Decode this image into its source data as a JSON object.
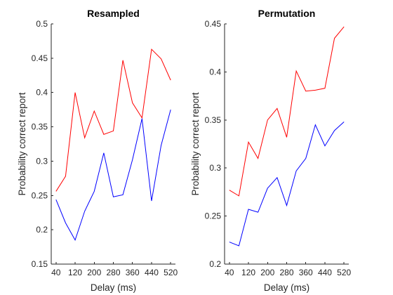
{
  "chart_data": [
    {
      "type": "line",
      "title": "Resampled",
      "xlabel": "Delay (ms)",
      "ylabel": "Probability correct report",
      "xlim": [
        20,
        540
      ],
      "ylim": [
        0.15,
        0.5
      ],
      "xticks": [
        40,
        120,
        200,
        280,
        360,
        440,
        520
      ],
      "xtick_labels": [
        "40",
        "120",
        "200",
        "280",
        "360",
        "440",
        "520"
      ],
      "yticks": [
        0.15,
        0.2,
        0.25,
        0.3,
        0.35,
        0.4,
        0.45,
        0.5
      ],
      "ytick_labels": [
        "0.15",
        "0.2",
        "0.25",
        "0.3",
        "0.35",
        "0.4",
        "0.45",
        "0.5"
      ],
      "grid": false,
      "x": [
        40,
        80,
        120,
        160,
        200,
        240,
        280,
        320,
        360,
        400,
        440,
        480,
        520
      ],
      "series": [
        {
          "color": "#ff0000",
          "values": [
            0.256,
            0.278,
            0.4,
            0.334,
            0.373,
            0.339,
            0.344,
            0.447,
            0.385,
            0.363,
            0.463,
            0.449,
            0.418
          ]
        },
        {
          "color": "#0000ff",
          "values": [
            0.244,
            0.21,
            0.185,
            0.227,
            0.256,
            0.312,
            0.248,
            0.251,
            0.302,
            0.362,
            0.242,
            0.323,
            0.375
          ]
        }
      ]
    },
    {
      "type": "line",
      "title": "Permutation",
      "xlabel": "Delay (ms)",
      "ylabel": "Probability correct report",
      "xlim": [
        20,
        540
      ],
      "ylim": [
        0.2,
        0.45
      ],
      "xticks": [
        40,
        120,
        200,
        280,
        360,
        440,
        520
      ],
      "xtick_labels": [
        "40",
        "120",
        "200",
        "280",
        "360",
        "440",
        "520"
      ],
      "yticks": [
        0.2,
        0.25,
        0.3,
        0.35,
        0.4,
        0.45
      ],
      "ytick_labels": [
        "0.2",
        "0.25",
        "0.3",
        "0.35",
        "0.4",
        "0.45"
      ],
      "grid": false,
      "x": [
        40,
        80,
        120,
        160,
        200,
        240,
        280,
        320,
        360,
        400,
        440,
        480,
        520
      ],
      "series": [
        {
          "color": "#ff0000",
          "values": [
            0.277,
            0.271,
            0.327,
            0.31,
            0.35,
            0.362,
            0.332,
            0.401,
            0.38,
            0.381,
            0.383,
            0.435,
            0.447
          ]
        },
        {
          "color": "#0000ff",
          "values": [
            0.223,
            0.219,
            0.257,
            0.254,
            0.279,
            0.29,
            0.261,
            0.297,
            0.31,
            0.345,
            0.323,
            0.339,
            0.348
          ]
        }
      ]
    }
  ]
}
